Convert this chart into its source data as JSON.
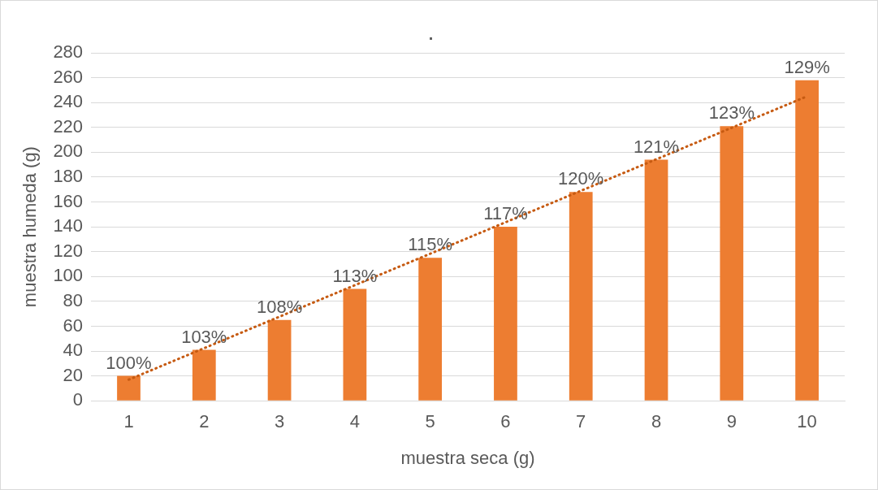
{
  "chart_data": {
    "type": "bar",
    "title": ".",
    "xlabel": "muestra seca (g)",
    "ylabel": "muestra humeda (g)",
    "categories": [
      "1",
      "2",
      "3",
      "4",
      "5",
      "6",
      "7",
      "8",
      "9",
      "10"
    ],
    "series": [
      {
        "color": "#ed7d31",
        "values": [
          20,
          41,
          65,
          90,
          115,
          140,
          168,
          194,
          221,
          258
        ]
      },
      {
        "type": "line",
        "color": "#c65a11",
        "values": [
          17,
          null,
          null,
          null,
          null,
          null,
          null,
          null,
          null,
          245
        ],
        "line_style": "dotted",
        "marker": "none"
      }
    ],
    "annotations": [
      {
        "text": "100%",
        "x": "1",
        "y": 20
      },
      {
        "text": "103%",
        "x": "2",
        "y": 41
      },
      {
        "text": "108%",
        "x": "3",
        "y": 65
      },
      {
        "text": "113%",
        "x": "4",
        "y": 90
      },
      {
        "text": "115%",
        "x": "5",
        "y": 115
      },
      {
        "text": "117%",
        "x": "6",
        "y": 140
      },
      {
        "text": "120%",
        "x": "7",
        "y": 168
      },
      {
        "text": "121%",
        "x": "8",
        "y": 194
      },
      {
        "text": "123%",
        "x": "9",
        "y": 221
      },
      {
        "text": "129%",
        "x": "10",
        "y": 258
      }
    ],
    "ylim": [
      0,
      280
    ],
    "yticks": [
      0,
      20,
      40,
      60,
      80,
      100,
      120,
      140,
      160,
      180,
      200,
      220,
      240,
      260,
      280
    ],
    "grid": "y",
    "legend": false
  }
}
